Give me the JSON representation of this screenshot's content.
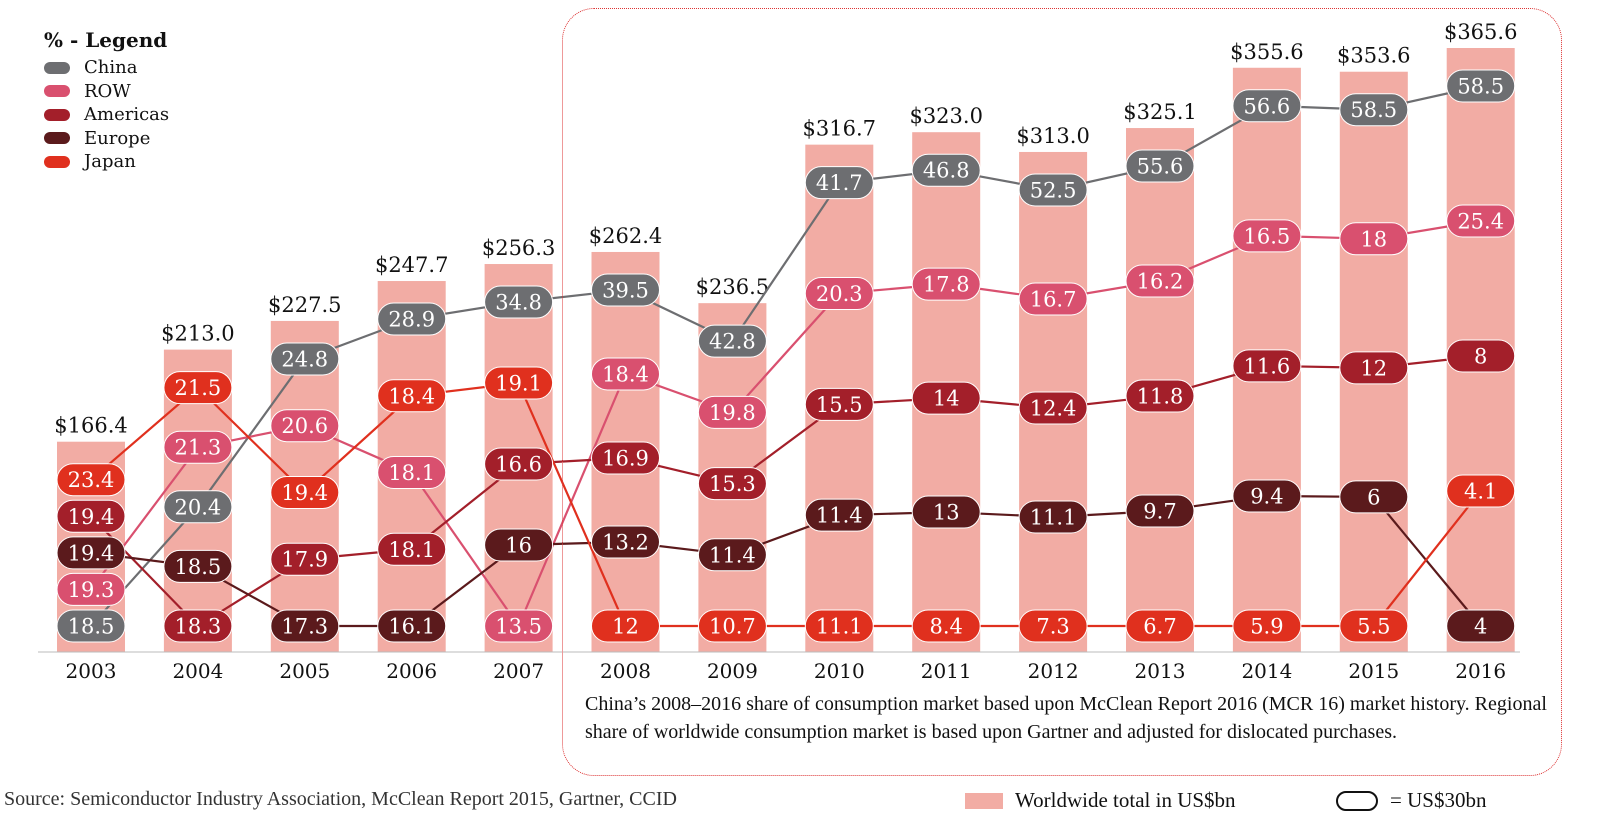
{
  "chart_data": {
    "type": "bar",
    "categories": [
      "2003",
      "2004",
      "2005",
      "2006",
      "2007",
      "2008",
      "2009",
      "2010",
      "2011",
      "2012",
      "2013",
      "2014",
      "2015",
      "2016"
    ],
    "totals": {
      "name": "Worldwide total in US$bn",
      "values": [
        166.4,
        213.0,
        227.5,
        247.7,
        256.3,
        262.4,
        236.5,
        316.7,
        323.0,
        313.0,
        325.1,
        355.6,
        353.6,
        365.6
      ],
      "labels": [
        "$166.4",
        "$213.0",
        "$227.5",
        "$247.7",
        "$256.3",
        "$262.4",
        "$236.5",
        "$316.7",
        "$323.0",
        "$313.0",
        "$325.1",
        "$355.6",
        "$353.6",
        "$365.6"
      ],
      "color": "#f2aca4"
    },
    "series": [
      {
        "name": "China",
        "color": "#6d6e71",
        "values": [
          18.5,
          20.4,
          24.8,
          28.9,
          34.8,
          39.5,
          42.8,
          41.7,
          46.8,
          52.5,
          55.6,
          56.6,
          58.5,
          58.5
        ]
      },
      {
        "name": "ROW",
        "color": "#d9506f",
        "values": [
          19.3,
          21.3,
          20.6,
          18.1,
          13.5,
          18.4,
          19.8,
          20.3,
          17.8,
          16.7,
          16.2,
          16.5,
          18,
          25.4
        ]
      },
      {
        "name": "Americas",
        "color": "#a31f2a",
        "values": [
          19.4,
          18.3,
          17.9,
          18.1,
          16.6,
          16.9,
          15.3,
          15.5,
          14,
          12.4,
          11.8,
          11.6,
          12,
          8
        ]
      },
      {
        "name": "Europe",
        "color": "#5b1a1c",
        "values": [
          19.4,
          18.5,
          17.3,
          16.1,
          16,
          13.2,
          11.4,
          11.4,
          13,
          11.1,
          9.7,
          9.4,
          6,
          4
        ]
      },
      {
        "name": "Japan",
        "color": "#e0301e",
        "values": [
          23.4,
          21.5,
          19.4,
          18.4,
          19.1,
          12,
          10.7,
          11.1,
          8.4,
          7.3,
          6.7,
          5.9,
          5.5,
          4.1
        ]
      }
    ],
    "legend_title": "% - Legend",
    "legend_position": "top-left",
    "grid": false
  },
  "caption": "China’s 2008–2016 share of consumption market based upon McClean Report 2016 (MCR 16) market history. Regional share of worldwide consumption market is based upon Gartner and adjusted for dislocated purchases.",
  "source": "Source: Semiconductor Industry Association, McClean Report 2015, Gartner, CCID",
  "bottom_legend": {
    "bar_label": "Worldwide total in US$bn",
    "pill_label": "= US$30bn"
  }
}
